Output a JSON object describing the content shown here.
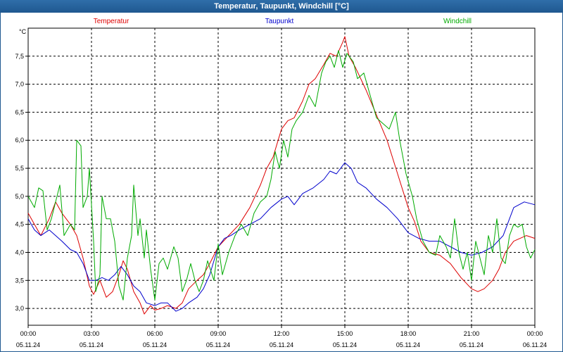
{
  "window": {
    "title": "Temperatur, Taupunkt, Windchill [°C]"
  },
  "chart_data": {
    "type": "line",
    "title": "Temperatur, Taupunkt, Windchill [°C]",
    "ylabel": "°C",
    "ylim": [
      2.7,
      8.0
    ],
    "xlim": [
      0,
      24
    ],
    "grid": true,
    "legend_position": "top",
    "y_ticks": [
      {
        "v": 3.0,
        "label": "3,0"
      },
      {
        "v": 3.5,
        "label": "3,5"
      },
      {
        "v": 4.0,
        "label": "4,0"
      },
      {
        "v": 4.5,
        "label": "4,5"
      },
      {
        "v": 5.0,
        "label": "5,0"
      },
      {
        "v": 5.5,
        "label": "5,5"
      },
      {
        "v": 6.0,
        "label": "6,0"
      },
      {
        "v": 6.5,
        "label": "6,5"
      },
      {
        "v": 7.0,
        "label": "7,0"
      },
      {
        "v": 7.5,
        "label": "7,5"
      }
    ],
    "x_ticks": [
      {
        "h": 0,
        "time": "00:00",
        "date": "05.11.24"
      },
      {
        "h": 3,
        "time": "03:00",
        "date": "05.11.24"
      },
      {
        "h": 6,
        "time": "06:00",
        "date": "05.11.24"
      },
      {
        "h": 9,
        "time": "09:00",
        "date": "05.11.24"
      },
      {
        "h": 12,
        "time": "12:00",
        "date": "05.11.24"
      },
      {
        "h": 15,
        "time": "15:00",
        "date": "05.11.24"
      },
      {
        "h": 18,
        "time": "18:00",
        "date": "05.11.24"
      },
      {
        "h": 21,
        "time": "21:00",
        "date": "05.11.24"
      },
      {
        "h": 24,
        "time": "00:00",
        "date": "06.11.24"
      }
    ],
    "series": [
      {
        "name": "Temperatur",
        "color": "#dd0000",
        "points": [
          [
            0.0,
            4.7
          ],
          [
            0.3,
            4.5
          ],
          [
            0.6,
            4.3
          ],
          [
            1.0,
            4.6
          ],
          [
            1.3,
            4.9
          ],
          [
            1.6,
            4.7
          ],
          [
            2.0,
            4.5
          ],
          [
            2.3,
            4.3
          ],
          [
            2.6,
            3.9
          ],
          [
            2.9,
            3.4
          ],
          [
            3.1,
            3.25
          ],
          [
            3.4,
            3.5
          ],
          [
            3.7,
            3.2
          ],
          [
            4.0,
            3.3
          ],
          [
            4.3,
            3.6
          ],
          [
            4.5,
            3.85
          ],
          [
            4.7,
            3.7
          ],
          [
            5.0,
            3.3
          ],
          [
            5.3,
            3.1
          ],
          [
            5.5,
            2.9
          ],
          [
            5.8,
            3.05
          ],
          [
            6.0,
            2.97
          ],
          [
            6.3,
            3.0
          ],
          [
            6.6,
            3.05
          ],
          [
            7.0,
            3.0
          ],
          [
            7.3,
            3.1
          ],
          [
            7.6,
            3.35
          ],
          [
            8.0,
            3.5
          ],
          [
            8.3,
            3.6
          ],
          [
            8.6,
            3.8
          ],
          [
            9.0,
            4.1
          ],
          [
            9.5,
            4.3
          ],
          [
            10.0,
            4.5
          ],
          [
            10.5,
            4.8
          ],
          [
            11.0,
            5.2
          ],
          [
            11.3,
            5.5
          ],
          [
            11.6,
            5.7
          ],
          [
            12.0,
            6.2
          ],
          [
            12.3,
            6.35
          ],
          [
            12.6,
            6.4
          ],
          [
            13.0,
            6.7
          ],
          [
            13.3,
            7.0
          ],
          [
            13.6,
            7.1
          ],
          [
            14.0,
            7.35
          ],
          [
            14.3,
            7.55
          ],
          [
            14.6,
            7.5
          ],
          [
            14.9,
            7.75
          ],
          [
            15.0,
            7.85
          ],
          [
            15.2,
            7.5
          ],
          [
            15.5,
            7.3
          ],
          [
            16.0,
            6.9
          ],
          [
            16.5,
            6.45
          ],
          [
            17.0,
            6.0
          ],
          [
            17.5,
            5.4
          ],
          [
            18.0,
            4.8
          ],
          [
            18.3,
            4.55
          ],
          [
            18.6,
            4.2
          ],
          [
            19.0,
            4.0
          ],
          [
            19.5,
            3.95
          ],
          [
            20.0,
            3.8
          ],
          [
            20.5,
            3.55
          ],
          [
            21.0,
            3.35
          ],
          [
            21.3,
            3.3
          ],
          [
            21.6,
            3.35
          ],
          [
            22.0,
            3.5
          ],
          [
            22.3,
            3.7
          ],
          [
            22.6,
            4.0
          ],
          [
            23.0,
            4.2
          ],
          [
            23.3,
            4.25
          ],
          [
            23.6,
            4.3
          ],
          [
            24.0,
            4.25
          ]
        ]
      },
      {
        "name": "Taupunkt",
        "color": "#0000cc",
        "points": [
          [
            0.0,
            4.6
          ],
          [
            0.3,
            4.4
          ],
          [
            0.6,
            4.3
          ],
          [
            1.0,
            4.4
          ],
          [
            1.3,
            4.3
          ],
          [
            1.6,
            4.2
          ],
          [
            2.0,
            4.05
          ],
          [
            2.3,
            4.0
          ],
          [
            2.6,
            3.8
          ],
          [
            2.9,
            3.5
          ],
          [
            3.2,
            3.5
          ],
          [
            3.5,
            3.55
          ],
          [
            3.8,
            3.5
          ],
          [
            4.1,
            3.6
          ],
          [
            4.4,
            3.75
          ],
          [
            4.7,
            3.6
          ],
          [
            5.0,
            3.4
          ],
          [
            5.3,
            3.3
          ],
          [
            5.6,
            3.1
          ],
          [
            6.0,
            3.05
          ],
          [
            6.3,
            3.1
          ],
          [
            6.6,
            3.1
          ],
          [
            7.0,
            2.95
          ],
          [
            7.3,
            3.0
          ],
          [
            7.6,
            3.1
          ],
          [
            8.0,
            3.2
          ],
          [
            8.3,
            3.35
          ],
          [
            8.6,
            3.6
          ],
          [
            9.0,
            4.1
          ],
          [
            9.3,
            4.25
          ],
          [
            9.6,
            4.3
          ],
          [
            10.0,
            4.4
          ],
          [
            10.5,
            4.5
          ],
          [
            11.0,
            4.6
          ],
          [
            11.5,
            4.8
          ],
          [
            12.0,
            4.95
          ],
          [
            12.3,
            5.0
          ],
          [
            12.6,
            4.85
          ],
          [
            13.0,
            5.05
          ],
          [
            13.5,
            5.15
          ],
          [
            14.0,
            5.3
          ],
          [
            14.3,
            5.45
          ],
          [
            14.6,
            5.4
          ],
          [
            15.0,
            5.6
          ],
          [
            15.3,
            5.5
          ],
          [
            15.6,
            5.25
          ],
          [
            16.0,
            5.15
          ],
          [
            16.5,
            4.95
          ],
          [
            17.0,
            4.8
          ],
          [
            17.5,
            4.6
          ],
          [
            18.0,
            4.35
          ],
          [
            18.5,
            4.25
          ],
          [
            19.0,
            4.2
          ],
          [
            19.5,
            4.2
          ],
          [
            20.0,
            4.1
          ],
          [
            20.5,
            4.0
          ],
          [
            21.0,
            3.95
          ],
          [
            21.5,
            4.0
          ],
          [
            22.0,
            4.1
          ],
          [
            22.5,
            4.3
          ],
          [
            23.0,
            4.8
          ],
          [
            23.5,
            4.9
          ],
          [
            24.0,
            4.85
          ]
        ]
      },
      {
        "name": "Windchill",
        "color": "#00aa00",
        "points": [
          [
            0.0,
            5.0
          ],
          [
            0.3,
            4.8
          ],
          [
            0.5,
            5.15
          ],
          [
            0.7,
            5.1
          ],
          [
            0.9,
            4.4
          ],
          [
            1.1,
            4.6
          ],
          [
            1.3,
            4.9
          ],
          [
            1.5,
            5.2
          ],
          [
            1.7,
            4.3
          ],
          [
            2.0,
            4.5
          ],
          [
            2.2,
            4.4
          ],
          [
            2.3,
            6.0
          ],
          [
            2.5,
            5.9
          ],
          [
            2.6,
            4.8
          ],
          [
            2.8,
            5.0
          ],
          [
            2.9,
            5.5
          ],
          [
            3.1,
            4.2
          ],
          [
            3.2,
            3.3
          ],
          [
            3.4,
            3.6
          ],
          [
            3.5,
            5.0
          ],
          [
            3.7,
            4.6
          ],
          [
            3.9,
            4.6
          ],
          [
            4.1,
            4.2
          ],
          [
            4.3,
            3.4
          ],
          [
            4.5,
            3.15
          ],
          [
            4.7,
            3.9
          ],
          [
            4.9,
            4.3
          ],
          [
            5.0,
            5.2
          ],
          [
            5.2,
            4.3
          ],
          [
            5.3,
            4.6
          ],
          [
            5.5,
            3.9
          ],
          [
            5.6,
            4.4
          ],
          [
            5.8,
            3.7
          ],
          [
            6.0,
            3.15
          ],
          [
            6.2,
            3.8
          ],
          [
            6.4,
            3.9
          ],
          [
            6.6,
            3.7
          ],
          [
            6.9,
            4.1
          ],
          [
            7.1,
            3.9
          ],
          [
            7.3,
            3.3
          ],
          [
            7.5,
            3.5
          ],
          [
            7.7,
            3.8
          ],
          [
            7.9,
            3.5
          ],
          [
            8.1,
            3.3
          ],
          [
            8.3,
            3.5
          ],
          [
            8.5,
            3.85
          ],
          [
            8.8,
            3.5
          ],
          [
            9.0,
            4.15
          ],
          [
            9.2,
            3.6
          ],
          [
            9.5,
            4.0
          ],
          [
            9.8,
            4.3
          ],
          [
            10.1,
            4.5
          ],
          [
            10.4,
            4.3
          ],
          [
            10.7,
            4.7
          ],
          [
            11.0,
            4.9
          ],
          [
            11.3,
            5.0
          ],
          [
            11.5,
            5.3
          ],
          [
            11.7,
            5.8
          ],
          [
            11.9,
            5.5
          ],
          [
            12.1,
            6.0
          ],
          [
            12.3,
            5.7
          ],
          [
            12.5,
            6.2
          ],
          [
            12.7,
            6.35
          ],
          [
            13.0,
            6.5
          ],
          [
            13.3,
            6.8
          ],
          [
            13.6,
            6.6
          ],
          [
            13.9,
            7.2
          ],
          [
            14.1,
            7.4
          ],
          [
            14.3,
            7.5
          ],
          [
            14.5,
            7.3
          ],
          [
            14.7,
            7.6
          ],
          [
            14.9,
            7.3
          ],
          [
            15.1,
            7.55
          ],
          [
            15.4,
            7.4
          ],
          [
            15.6,
            7.1
          ],
          [
            15.9,
            7.2
          ],
          [
            16.2,
            6.8
          ],
          [
            16.5,
            6.4
          ],
          [
            16.8,
            6.3
          ],
          [
            17.1,
            6.2
          ],
          [
            17.4,
            6.5
          ],
          [
            17.6,
            6.0
          ],
          [
            17.9,
            5.4
          ],
          [
            18.2,
            5.0
          ],
          [
            18.4,
            4.6
          ],
          [
            18.7,
            4.2
          ],
          [
            19.0,
            4.0
          ],
          [
            19.3,
            3.95
          ],
          [
            19.5,
            4.3
          ],
          [
            19.8,
            4.1
          ],
          [
            20.0,
            3.9
          ],
          [
            20.2,
            4.6
          ],
          [
            20.4,
            4.0
          ],
          [
            20.6,
            3.7
          ],
          [
            20.8,
            4.0
          ],
          [
            21.0,
            3.5
          ],
          [
            21.2,
            4.2
          ],
          [
            21.4,
            3.9
          ],
          [
            21.6,
            3.6
          ],
          [
            21.8,
            4.3
          ],
          [
            22.0,
            4.0
          ],
          [
            22.2,
            4.6
          ],
          [
            22.4,
            3.9
          ],
          [
            22.6,
            3.8
          ],
          [
            22.8,
            4.3
          ],
          [
            23.0,
            4.5
          ],
          [
            23.2,
            4.45
          ],
          [
            23.4,
            4.5
          ],
          [
            23.6,
            4.1
          ],
          [
            23.8,
            3.9
          ],
          [
            24.0,
            4.05
          ]
        ]
      }
    ]
  }
}
